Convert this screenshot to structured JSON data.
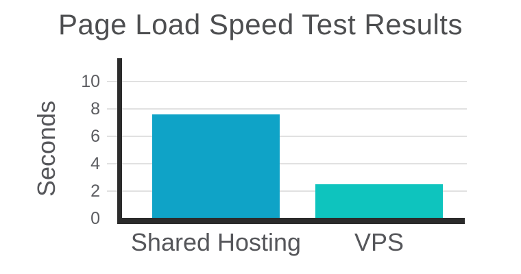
{
  "chart_data": {
    "type": "bar",
    "title": "Page Load Speed Test Results",
    "xlabel": "",
    "ylabel": "Seconds",
    "categories": [
      "Shared Hosting",
      "VPS"
    ],
    "values": [
      7.6,
      2.5
    ],
    "yticks": [
      0,
      2,
      4,
      6,
      8,
      10
    ],
    "ylim": [
      0,
      11.7
    ],
    "grid": true,
    "legend": false,
    "bar_colors": [
      "#0fa3c7",
      "#0ec4be"
    ]
  },
  "colors": {
    "background": "#ffffff",
    "axis": "#2b2b2b",
    "gridline": "#e1e1e1",
    "title_text": "#4d4e50",
    "label_text": "#55565a",
    "tick_text": "#5c5d61"
  }
}
